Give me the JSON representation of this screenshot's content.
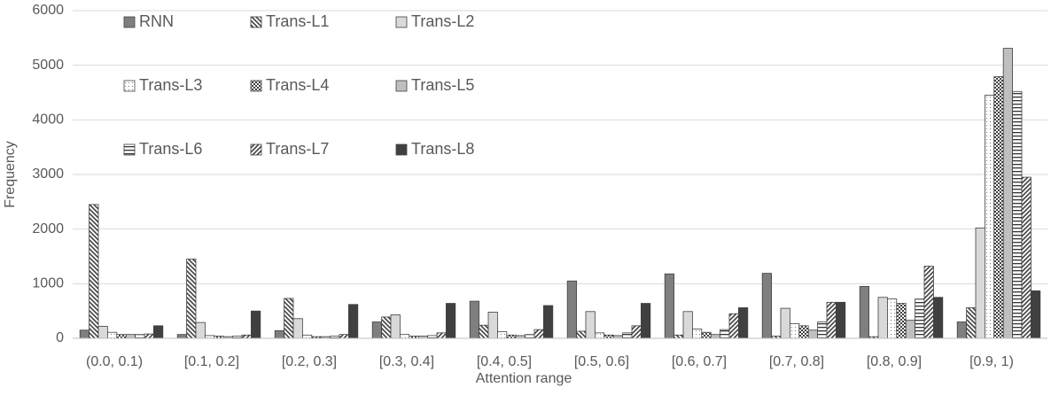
{
  "chart_data": {
    "type": "bar",
    "xlabel": "Attention range",
    "ylabel": "Frequency",
    "categories": [
      "(0.0, 0.1)",
      "[0.1, 0.2]",
      "[0.2, 0.3]",
      "[0.3, 0.4]",
      "[0.4, 0.5]",
      "[0.5, 0.6]",
      "[0.6, 0.7]",
      "[0.7, 0.8]",
      "[0.8, 0.9]",
      "[0.9, 1)"
    ],
    "series": [
      {
        "name": "RNN",
        "color": "#7f7f7f",
        "pattern": "solid",
        "values": [
          150,
          70,
          140,
          300,
          680,
          1050,
          1180,
          1190,
          950,
          300
        ]
      },
      {
        "name": "Trans-L1",
        "color": "#595959",
        "pattern": "back-hatch",
        "values": [
          2450,
          1450,
          730,
          390,
          240,
          130,
          60,
          40,
          30,
          560
        ]
      },
      {
        "name": "Trans-L2",
        "color": "#d9d9d9",
        "pattern": "solid",
        "values": [
          220,
          290,
          360,
          430,
          480,
          490,
          490,
          550,
          750,
          2020
        ]
      },
      {
        "name": "Trans-L3",
        "color": "#595959",
        "pattern": "dots",
        "values": [
          110,
          50,
          60,
          70,
          120,
          100,
          170,
          270,
          720,
          4450
        ]
      },
      {
        "name": "Trans-L4",
        "color": "#595959",
        "pattern": "checker",
        "values": [
          70,
          40,
          30,
          40,
          60,
          60,
          110,
          230,
          640,
          4790
        ]
      },
      {
        "name": "Trans-L5",
        "color": "#bfbfbf",
        "pattern": "solid",
        "values": [
          70,
          30,
          30,
          40,
          50,
          50,
          70,
          150,
          330,
          5310
        ]
      },
      {
        "name": "Trans-L6",
        "color": "#404040",
        "pattern": "horizontal",
        "values": [
          70,
          40,
          40,
          50,
          70,
          100,
          160,
          300,
          720,
          4520
        ]
      },
      {
        "name": "Trans-L7",
        "color": "#595959",
        "pattern": "forward-hatch",
        "values": [
          80,
          60,
          70,
          100,
          160,
          230,
          450,
          660,
          1320,
          2950
        ]
      },
      {
        "name": "Trans-L8",
        "color": "#404040",
        "pattern": "solid",
        "values": [
          230,
          500,
          620,
          640,
          600,
          640,
          560,
          660,
          750,
          870
        ]
      }
    ],
    "ylim": [
      0,
      6000
    ],
    "yticks": [
      0,
      1000,
      2000,
      3000,
      4000,
      5000,
      6000
    ],
    "grid": true,
    "legend": "upper left"
  }
}
